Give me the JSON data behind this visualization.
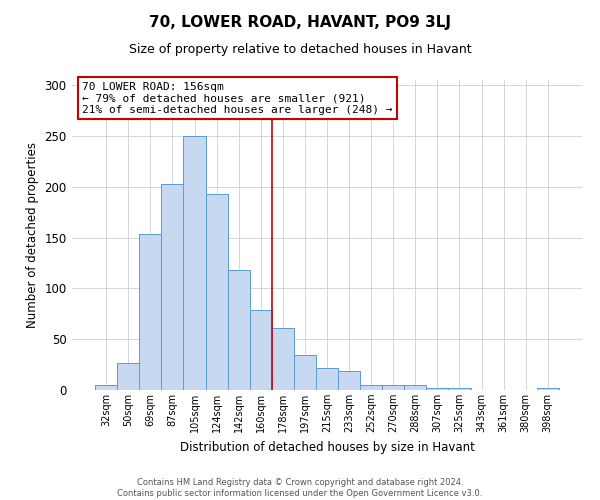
{
  "title": "70, LOWER ROAD, HAVANT, PO9 3LJ",
  "subtitle": "Size of property relative to detached houses in Havant",
  "xlabel": "Distribution of detached houses by size in Havant",
  "ylabel": "Number of detached properties",
  "bar_labels": [
    "32sqm",
    "50sqm",
    "69sqm",
    "87sqm",
    "105sqm",
    "124sqm",
    "142sqm",
    "160sqm",
    "178sqm",
    "197sqm",
    "215sqm",
    "233sqm",
    "252sqm",
    "270sqm",
    "288sqm",
    "307sqm",
    "325sqm",
    "343sqm",
    "361sqm",
    "380sqm",
    "398sqm"
  ],
  "bar_values": [
    5,
    27,
    153,
    203,
    250,
    193,
    118,
    79,
    61,
    34,
    22,
    19,
    5,
    5,
    5,
    2,
    2,
    0,
    0,
    0,
    2
  ],
  "bar_color": "#c6d9f0",
  "bar_edge_color": "#5b9bd5",
  "vline_x": 7.5,
  "vline_color": "#cc0000",
  "annotation_title": "70 LOWER ROAD: 156sqm",
  "annotation_line1": "← 79% of detached houses are smaller (921)",
  "annotation_line2": "21% of semi-detached houses are larger (248) →",
  "annotation_box_color": "#ffffff",
  "annotation_box_edge": "#cc0000",
  "ylim": [
    0,
    305
  ],
  "yticks": [
    0,
    50,
    100,
    150,
    200,
    250,
    300
  ],
  "footer1": "Contains HM Land Registry data © Crown copyright and database right 2024.",
  "footer2": "Contains public sector information licensed under the Open Government Licence v3.0.",
  "background_color": "#ffffff",
  "grid_color": "#d0d0d0"
}
